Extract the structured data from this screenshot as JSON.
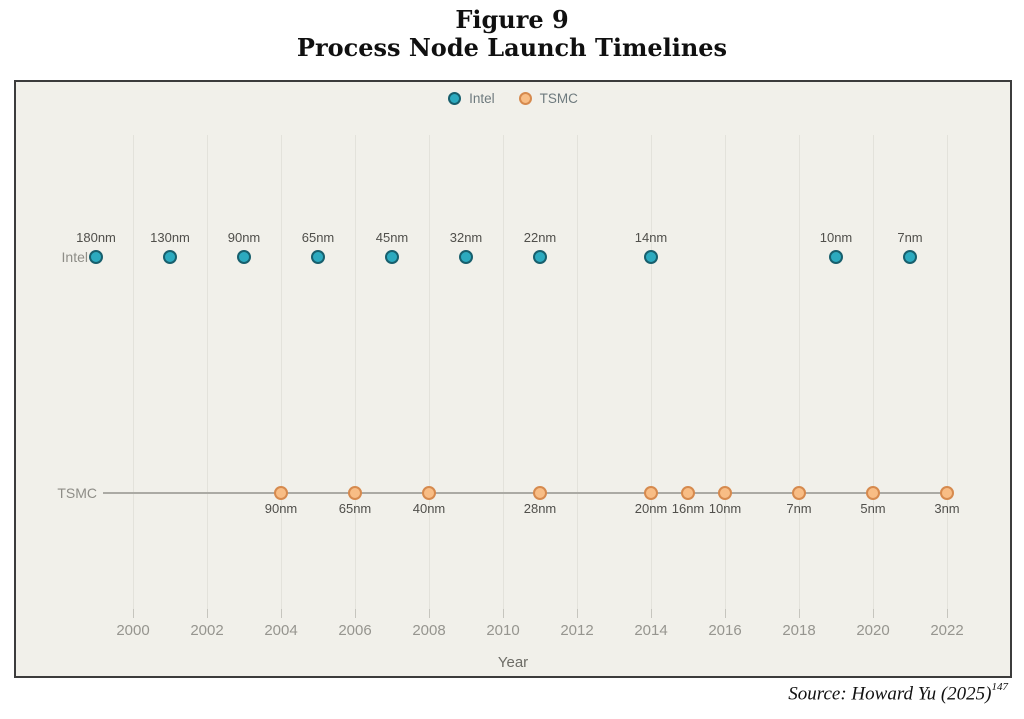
{
  "figure": {
    "title_line1": "Figure 9",
    "title_line2": "Process Node Launch Timelines"
  },
  "legend": {
    "items": [
      {
        "label": "Intel",
        "fill": "#2caabf",
        "stroke": "#185f6d"
      },
      {
        "label": "TSMC",
        "fill": "#f8bd85",
        "stroke": "#d68a4e"
      }
    ]
  },
  "source": {
    "text": "Source: Howard Yu (2025)",
    "footnote": "147"
  },
  "chart_data": {
    "type": "scatter",
    "title": "Process Node Launch Timelines",
    "xlabel": "Year",
    "x_ticks": [
      "2000",
      "2002",
      "2004",
      "2006",
      "2008",
      "2010",
      "2012",
      "2014",
      "2016",
      "2018",
      "2020",
      "2022"
    ],
    "x_range": [
      1998.8,
      2023.5
    ],
    "grid": "vertical-only",
    "legend_position": "top-center",
    "series": [
      {
        "name": "Intel",
        "marker_fill": "#2caabf",
        "marker_stroke": "#185f6d",
        "label_side": "above",
        "baseline_line": false,
        "points": [
          {
            "year": 1999,
            "node": "180nm"
          },
          {
            "year": 2001,
            "node": "130nm"
          },
          {
            "year": 2003,
            "node": "90nm"
          },
          {
            "year": 2005,
            "node": "65nm"
          },
          {
            "year": 2007,
            "node": "45nm"
          },
          {
            "year": 2009,
            "node": "32nm"
          },
          {
            "year": 2011,
            "node": "22nm"
          },
          {
            "year": 2014,
            "node": "14nm"
          },
          {
            "year": 2019,
            "node": "10nm"
          },
          {
            "year": 2021,
            "node": "7nm"
          }
        ]
      },
      {
        "name": "TSMC",
        "marker_fill": "#f8bd85",
        "marker_stroke": "#d68a4e",
        "label_side": "below",
        "baseline_line": true,
        "points": [
          {
            "year": 2004,
            "node": "90nm"
          },
          {
            "year": 2006,
            "node": "65nm"
          },
          {
            "year": 2008,
            "node": "40nm"
          },
          {
            "year": 2011,
            "node": "28nm"
          },
          {
            "year": 2014,
            "node": "20nm"
          },
          {
            "year": 2015,
            "node": "16nm"
          },
          {
            "year": 2016,
            "node": "10nm"
          },
          {
            "year": 2018,
            "node": "7nm"
          },
          {
            "year": 2020,
            "node": "5nm"
          },
          {
            "year": 2022,
            "node": "3nm"
          }
        ]
      }
    ]
  }
}
